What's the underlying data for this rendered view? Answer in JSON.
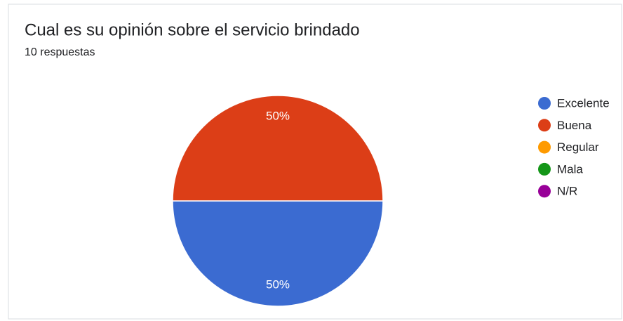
{
  "chart_data": {
    "type": "pie",
    "title": "Cual es su opinión sobre el servicio brindado",
    "subtitle": "10 respuestas",
    "categories": [
      "Excelente",
      "Buena",
      "Regular",
      "Mala",
      "N/R"
    ],
    "values": [
      50,
      50,
      0,
      0,
      0
    ],
    "value_labels": [
      "50%",
      "50%",
      null,
      null,
      null
    ],
    "colors": [
      "#3b6bd1",
      "#dc3e17",
      "#fe9a00",
      "#149618",
      "#980098"
    ],
    "legend": "right"
  }
}
